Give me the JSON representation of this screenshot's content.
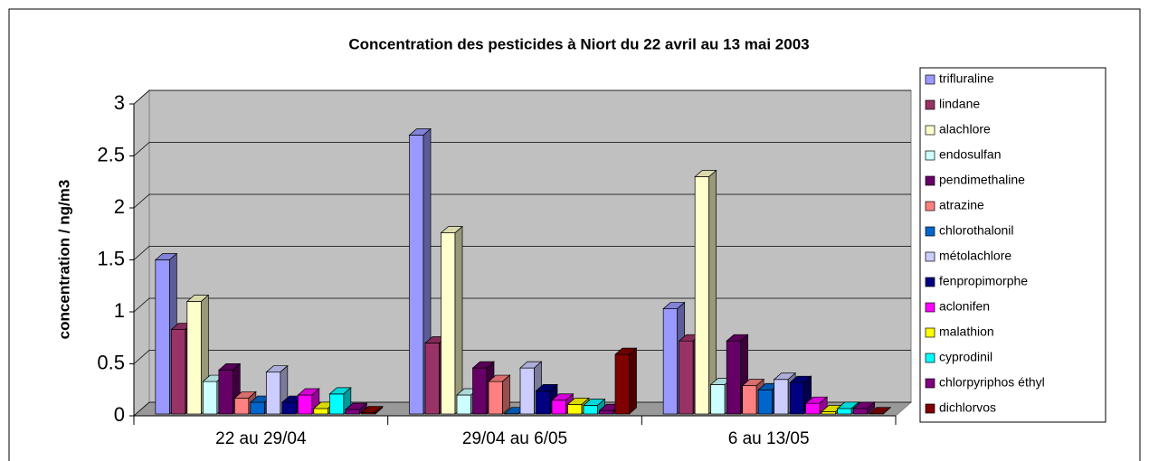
{
  "chart_data": {
    "type": "bar3d",
    "title": "Concentration des pesticides à Niort du 22 avril au 13 mai 2003",
    "y_label": "concentration / ng/m3",
    "categories": [
      "22 au 29/04",
      "29/04 au 6/05",
      "6 au 13/05"
    ],
    "ylim": [
      0,
      3
    ],
    "yticks": [
      0,
      0.5,
      1,
      1.5,
      2,
      2.5,
      3
    ],
    "grid": true,
    "legend": "right",
    "series": [
      {
        "name": "trifluraline",
        "color": "#9999FF",
        "values": [
          1.5,
          2.7,
          1.03
        ]
      },
      {
        "name": "lindane",
        "color": "#993366",
        "values": [
          0.83,
          0.7,
          0.72
        ]
      },
      {
        "name": "alachlore",
        "color": "#FFFFCC",
        "values": [
          1.1,
          1.76,
          2.3
        ]
      },
      {
        "name": "endosulfan",
        "color": "#CCFFFF",
        "values": [
          0.33,
          0.2,
          0.3
        ]
      },
      {
        "name": "pendimethaline",
        "color": "#660066",
        "values": [
          0.44,
          0.46,
          0.72
        ]
      },
      {
        "name": "atrazine",
        "color": "#FF8080",
        "values": [
          0.17,
          0.33,
          0.29
        ]
      },
      {
        "name": "chlorothalonil",
        "color": "#0066CC",
        "values": [
          0.13,
          0.02,
          0.25
        ]
      },
      {
        "name": "métolachlore",
        "color": "#CCCCFF",
        "values": [
          0.42,
          0.46,
          0.35
        ]
      },
      {
        "name": "fenpropimorphe",
        "color": "#000080",
        "values": [
          0.13,
          0.24,
          0.32
        ]
      },
      {
        "name": "aclonifen",
        "color": "#FF00FF",
        "values": [
          0.2,
          0.15,
          0.12
        ]
      },
      {
        "name": "malathion",
        "color": "#FFFF00",
        "values": [
          0.07,
          0.11,
          0.04
        ]
      },
      {
        "name": "cyprodinil",
        "color": "#00FFFF",
        "values": [
          0.21,
          0.1,
          0.07
        ]
      },
      {
        "name": "chlorpyriphos éthyl",
        "color": "#800080",
        "values": [
          0.06,
          0.05,
          0.07
        ]
      },
      {
        "name": "dichlorvos",
        "color": "#800000",
        "values": [
          0.03,
          0.59,
          0.02
        ]
      }
    ]
  }
}
